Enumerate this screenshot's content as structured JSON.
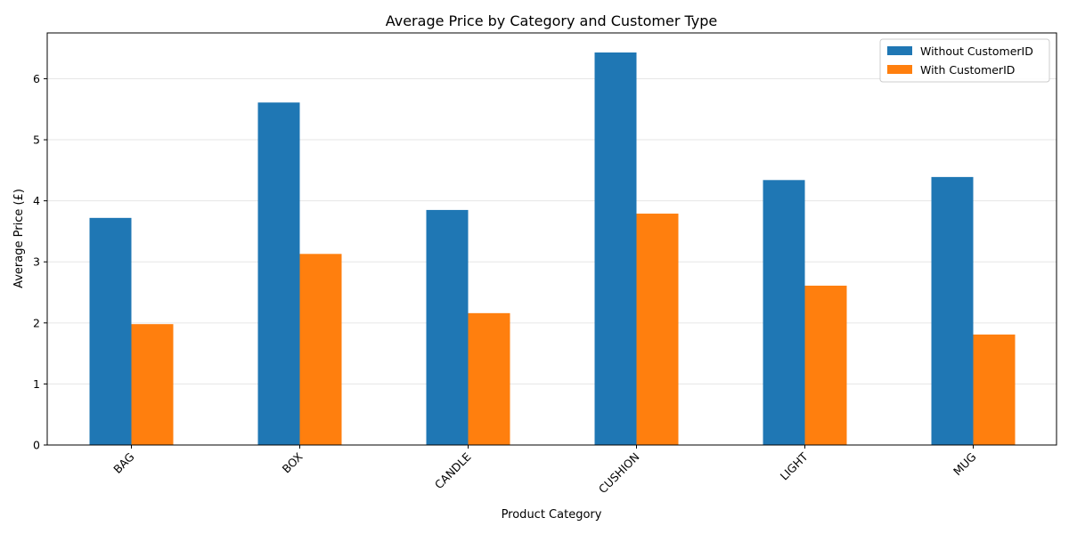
{
  "chart_data": {
    "type": "bar",
    "title": "Average Price by Category and Customer Type",
    "xlabel": "Product Category",
    "ylabel": "Average Price (£)",
    "categories": [
      "BAG",
      "BOX",
      "CANDLE",
      "CUSHION",
      "LIGHT",
      "MUG"
    ],
    "series": [
      {
        "name": "Without CustomerID",
        "color": "#1f77b4",
        "values": [
          3.72,
          5.61,
          3.85,
          6.43,
          4.34,
          4.39
        ]
      },
      {
        "name": "With CustomerID",
        "color": "#ff7f0e",
        "values": [
          1.98,
          3.13,
          2.16,
          3.79,
          2.61,
          1.81
        ]
      }
    ],
    "ylim": [
      0,
      6.75
    ],
    "yticks": [
      "0",
      "1",
      "2",
      "3",
      "4",
      "5",
      "6"
    ],
    "grid": "horizontal",
    "legend": "top-right"
  }
}
